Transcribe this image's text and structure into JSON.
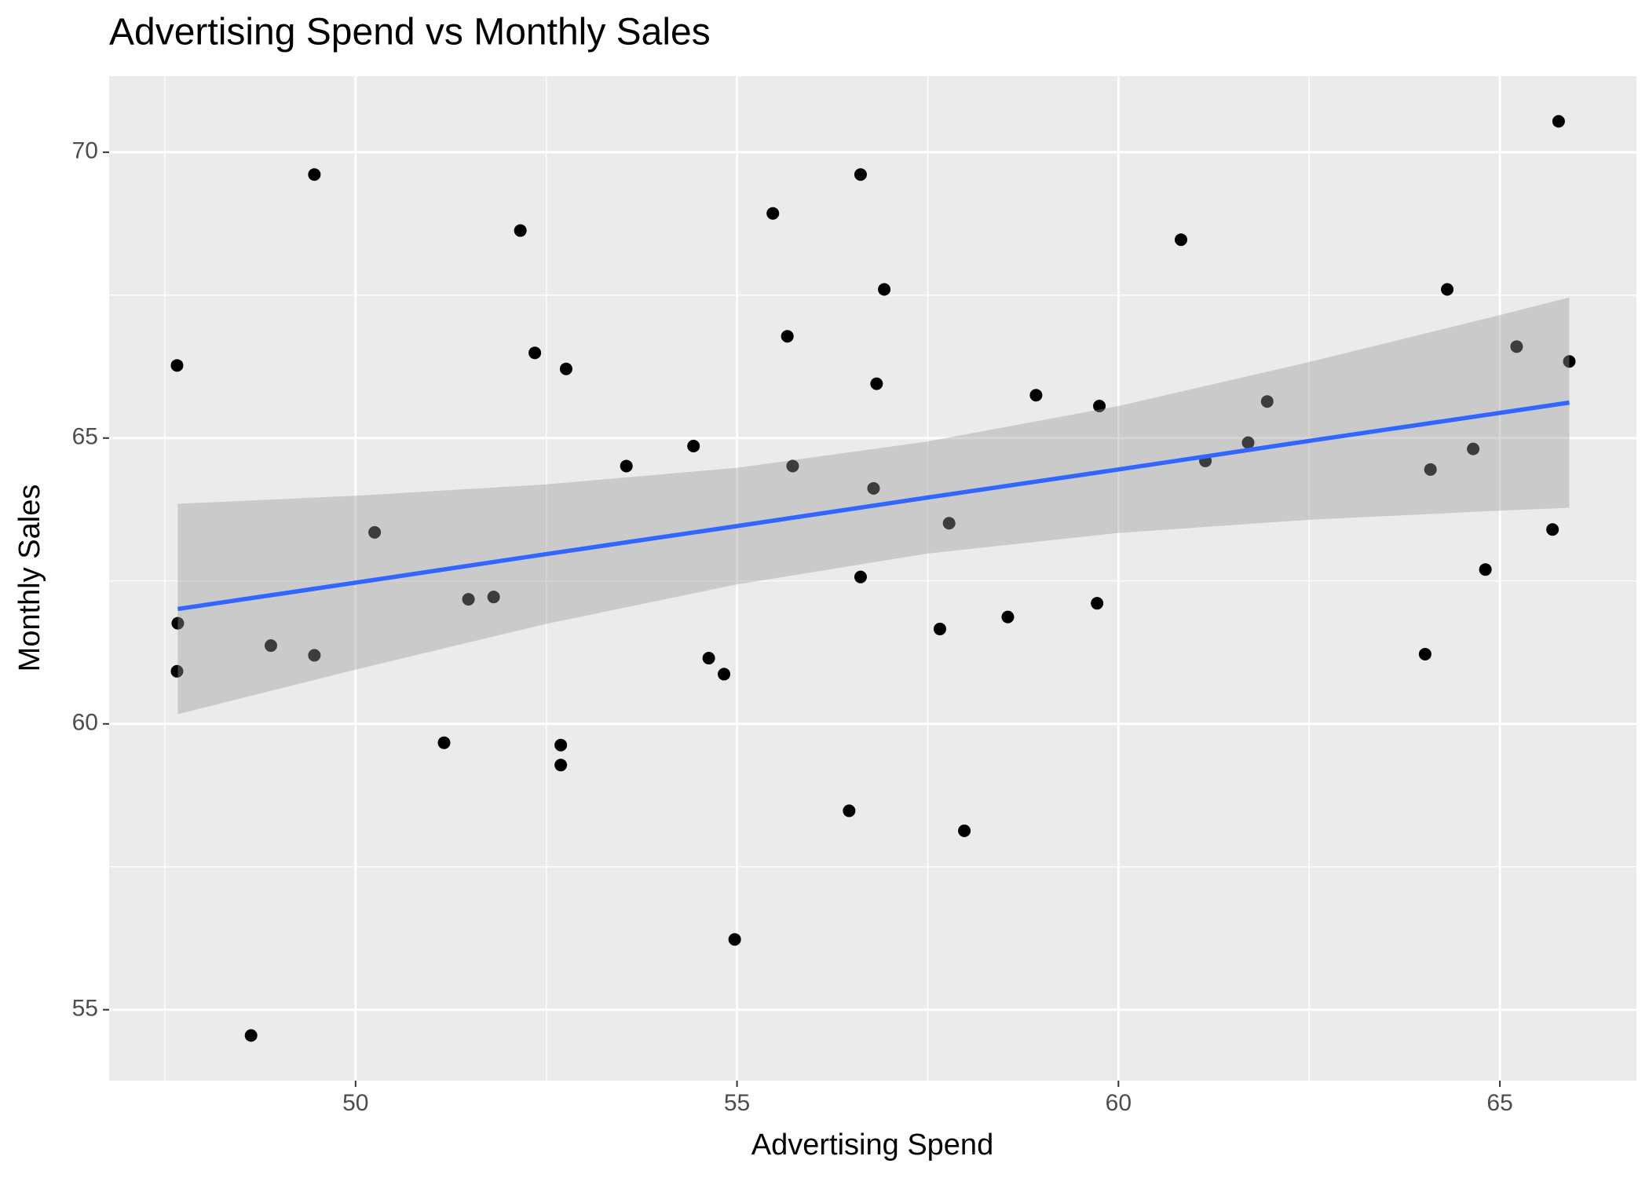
{
  "chart_data": {
    "type": "scatter",
    "title": "Advertising Spend vs Monthly Sales",
    "x_label": "Advertising Spend",
    "y_label": "Monthly Sales",
    "x": [
      47.66,
      47.67,
      47.66,
      48.63,
      48.89,
      49.46,
      49.46,
      50.25,
      51.16,
      51.48,
      51.81,
      52.16,
      52.35,
      52.69,
      52.69,
      52.76,
      53.55,
      54.43,
      54.63,
      54.83,
      54.97,
      55.47,
      55.66,
      55.73,
      56.47,
      56.62,
      56.62,
      56.79,
      56.83,
      56.93,
      57.66,
      57.78,
      57.98,
      58.55,
      58.92,
      59.72,
      59.75,
      60.82,
      61.14,
      61.7,
      61.95,
      64.02,
      64.09,
      64.31,
      64.65,
      64.81,
      65.22,
      65.69,
      65.77,
      65.91
    ],
    "values": [
      66.27,
      61.76,
      60.92,
      54.55,
      61.37,
      69.61,
      61.2,
      63.35,
      59.67,
      62.18,
      62.22,
      68.63,
      66.49,
      59.63,
      59.28,
      66.21,
      64.51,
      64.86,
      61.15,
      60.87,
      56.23,
      68.93,
      66.78,
      64.51,
      58.48,
      69.61,
      62.57,
      64.12,
      65.95,
      67.6,
      61.66,
      63.51,
      58.13,
      61.87,
      65.75,
      62.11,
      65.56,
      68.47,
      64.6,
      64.92,
      65.64,
      61.22,
      64.45,
      67.6,
      64.81,
      62.7,
      66.6,
      63.4,
      70.54,
      66.34
    ],
    "color": "#000000",
    "smooth": {
      "color": "#3366ff",
      "band_color": "#999999",
      "x": [
        47.67,
        50,
        52.5,
        55,
        57.5,
        60,
        62.5,
        65,
        65.91
      ],
      "fit": [
        62.01,
        62.47,
        62.97,
        63.46,
        63.96,
        64.45,
        64.95,
        65.44,
        65.62
      ],
      "lower": [
        60.17,
        60.95,
        61.75,
        62.44,
        62.98,
        63.34,
        63.57,
        63.73,
        63.78
      ],
      "upper": [
        63.85,
        63.99,
        64.19,
        64.48,
        64.94,
        65.56,
        66.33,
        67.15,
        67.46
      ]
    },
    "xlim": [
      46.77,
      66.79
    ],
    "ylim": [
      53.76,
      71.33
    ],
    "xticks": [
      50,
      55,
      60,
      65
    ],
    "yticks": [
      55,
      60,
      65,
      70
    ],
    "grid": true
  }
}
